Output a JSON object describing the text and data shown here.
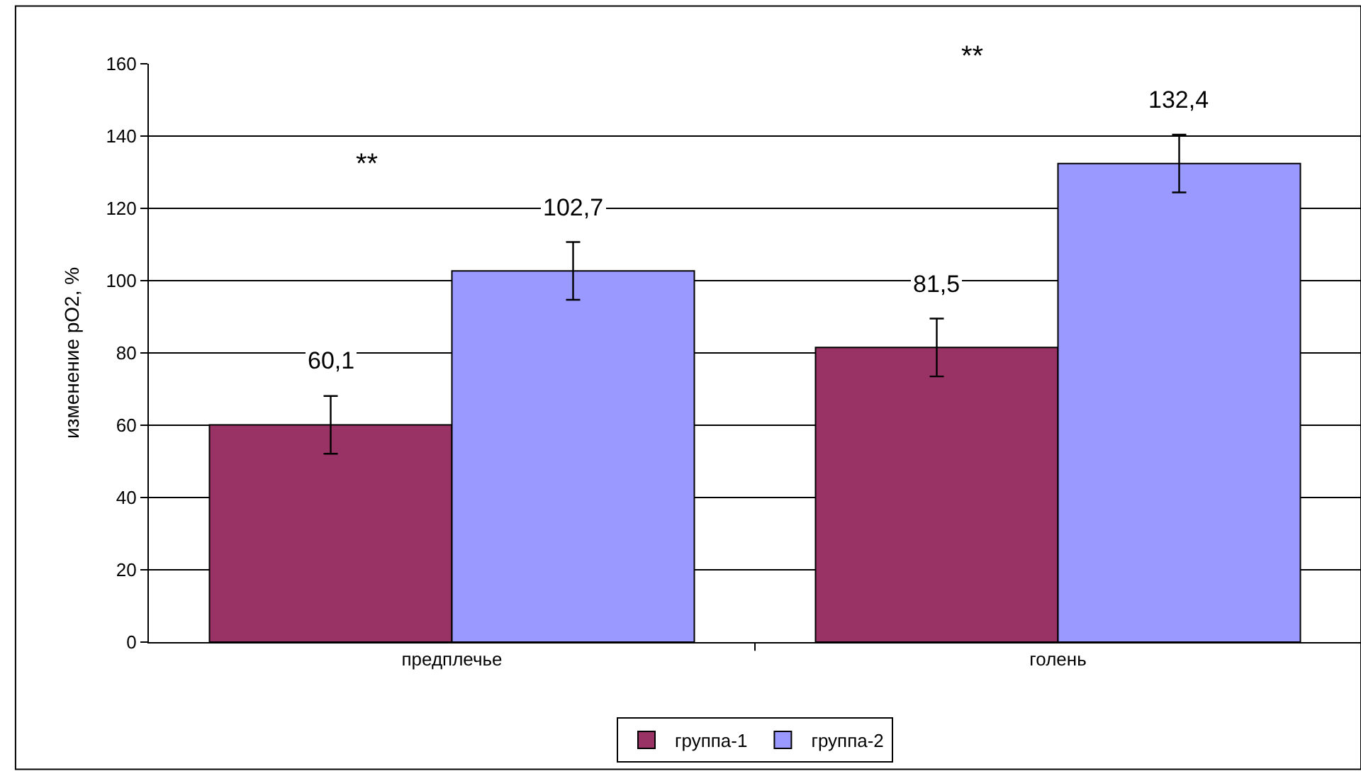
{
  "chart_data": {
    "type": "bar",
    "ylabel": "изменение pO2, %",
    "categories": [
      "предплечье",
      "голень"
    ],
    "series": [
      {
        "name": "группа-1",
        "color": "#993366",
        "values": [
          60.1,
          81.5
        ],
        "errors": [
          8,
          8
        ],
        "value_labels": [
          "60,1",
          "81,5"
        ]
      },
      {
        "name": "группа-2",
        "color": "#9999ff",
        "values": [
          102.7,
          132.4
        ],
        "errors": [
          8,
          8
        ],
        "value_labels": [
          "102,7",
          "132,4"
        ]
      }
    ],
    "annotations": [
      "**",
      "**"
    ],
    "ylim": [
      0,
      160
    ],
    "yticks": [
      0,
      20,
      40,
      60,
      80,
      100,
      120,
      140,
      160
    ],
    "grid": "y",
    "legend": "bottom"
  }
}
